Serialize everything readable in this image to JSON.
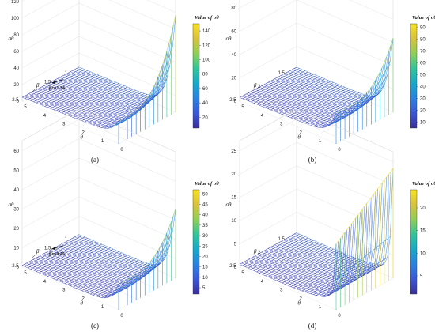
{
  "figure": {
    "subplot_labels": [
      "(a)",
      "(b)",
      "(c)",
      "(d)"
    ]
  },
  "colormap": [
    "#3b2e9a",
    "#3a57d6",
    "#2a82e0",
    "#17a9c8",
    "#33c49a",
    "#8fcf57",
    "#d8c23c",
    "#f9e21e"
  ],
  "chart_data": [
    {
      "type": "surface",
      "title": "",
      "zlabel": "σθ",
      "ylabel": "β",
      "xlabel": "θ",
      "colorbar_title": "Value of σθ",
      "z_ticks": [
        0,
        20,
        40,
        60,
        80,
        100,
        120,
        140
      ],
      "zlim": [
        0,
        140
      ],
      "beta_ticks": [
        "1",
        "1.5",
        "2",
        "2.5"
      ],
      "theta_ticks": [
        "5",
        "4",
        "3",
        "2",
        "1",
        "0"
      ],
      "colorbar_ticks": [
        20,
        40,
        60,
        80,
        100,
        120,
        140
      ],
      "colorbar_range": [
        5,
        150
      ],
      "annotation": "βc=1.34",
      "surface_model": {
        "base": 22,
        "corner_boost": 3.0,
        "mid_spike": 0.0,
        "mid_peak": 48,
        "corner_peak": 145
      }
    },
    {
      "type": "surface",
      "title": "",
      "zlabel": "σθ",
      "ylabel": "β",
      "xlabel": "θ",
      "colorbar_title": "Value of σθ",
      "z_ticks": [
        0,
        20,
        40,
        60,
        80,
        100
      ],
      "zlim": [
        0,
        100
      ],
      "beta_ticks": [
        "1.5",
        "2",
        "2.5"
      ],
      "theta_ticks": [
        "5",
        "4",
        "3",
        "2",
        "1",
        "0"
      ],
      "colorbar_ticks": [
        10,
        20,
        30,
        40,
        50,
        60,
        70,
        80,
        90
      ],
      "colorbar_range": [
        5,
        93
      ],
      "annotation": "",
      "surface_model": {
        "base": 15,
        "corner_boost": 1.0,
        "mid_spike": 0.0,
        "mid_peak": 48,
        "corner_peak": 93
      }
    },
    {
      "type": "surface",
      "title": "",
      "zlabel": "σθ",
      "ylabel": "β",
      "xlabel": "θ",
      "colorbar_title": "Value of σθ",
      "z_ticks": [
        0,
        10,
        20,
        30,
        40,
        50,
        60
      ],
      "zlim": [
        0,
        60
      ],
      "beta_ticks": [
        "1",
        "1.5",
        "2",
        "2.5"
      ],
      "theta_ticks": [
        "5",
        "4",
        "3",
        "2",
        "1",
        "0"
      ],
      "colorbar_ticks": [
        5,
        10,
        15,
        20,
        25,
        30,
        35,
        40,
        45,
        50
      ],
      "colorbar_range": [
        2,
        52
      ],
      "annotation": "βc=0.45",
      "surface_model": {
        "base": 4,
        "corner_boost": 1.0,
        "mid_spike": 0.0,
        "mid_peak": 26,
        "corner_peak": 52
      }
    },
    {
      "type": "surface",
      "title": "",
      "zlabel": "σθ",
      "ylabel": "β",
      "xlabel": "θ",
      "colorbar_title": "Value of σθ",
      "z_ticks": [
        0,
        5,
        10,
        15,
        20,
        25
      ],
      "zlim": [
        0,
        25
      ],
      "beta_ticks": [
        "1.5",
        "2",
        "2.5"
      ],
      "theta_ticks": [
        "5",
        "4",
        "3",
        "2",
        "1",
        "0"
      ],
      "colorbar_ticks": [
        5,
        10,
        15,
        20
      ],
      "colorbar_range": [
        1,
        24
      ],
      "annotation": "",
      "surface_model": {
        "base": 1,
        "corner_boost": 0.0,
        "mid_spike": 0.0,
        "mid_peak": 24,
        "corner_peak": 24
      }
    }
  ]
}
